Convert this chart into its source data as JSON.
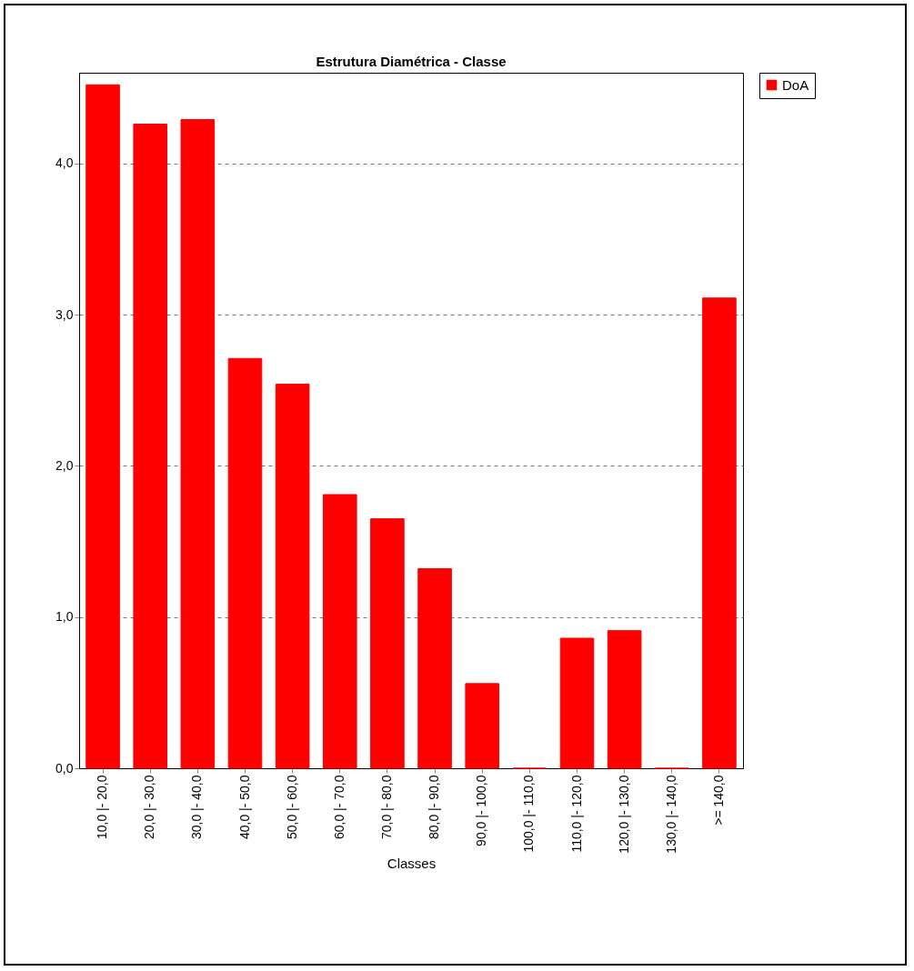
{
  "chart_data": {
    "type": "bar",
    "title": "Estrutura Diamétrica - Classe",
    "xlabel": "Classes",
    "categories": [
      "10,0 |- 20,0",
      "20,0 |- 30,0",
      "30,0 |- 40,0",
      "40,0 |- 50,0",
      "50,0 |- 60,0",
      "60,0 |- 70,0",
      "70,0 |- 80,0",
      "80,0 |- 90,0",
      "90,0 |- 100,0",
      "100,0 |- 110,0",
      "110,0 |- 120,0",
      "120,0 |- 130,0",
      "130,0 |- 140,0",
      ">= 140,0"
    ],
    "series": [
      {
        "name": "DoA",
        "color": "#ff0000",
        "values": [
          4.52,
          4.26,
          4.29,
          2.71,
          2.54,
          1.81,
          1.65,
          1.32,
          0.56,
          0,
          0.86,
          0.91,
          0,
          3.11
        ]
      }
    ],
    "ylim": [
      0,
      4.6
    ],
    "yticks": [
      {
        "value": 0,
        "label": "0,0"
      },
      {
        "value": 1,
        "label": "1,0"
      },
      {
        "value": 2,
        "label": "2,0"
      },
      {
        "value": 3,
        "label": "3,0"
      },
      {
        "value": 4,
        "label": "4,0"
      }
    ],
    "grid": "y",
    "legend": "top right"
  }
}
